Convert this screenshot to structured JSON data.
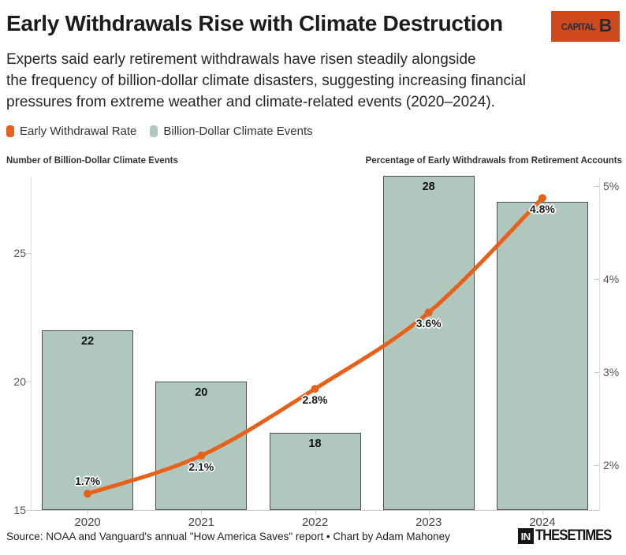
{
  "header": {
    "title": "Early Withdrawals Rise with Climate Destruction",
    "subtitle_lines": [
      "Experts said early retirement withdrawals have risen steadily alongside",
      "the frequency of billion-dollar climate disasters, suggesting increasing financial",
      "pressures from extreme weather and climate-related events (2020–2024)."
    ],
    "capital_b_logo": {
      "word": "CAPITAL",
      "letter": "B",
      "bg_color": "#CE491E",
      "text_color": "#252E38"
    }
  },
  "legend": {
    "items": [
      {
        "label": "Early Withdrawal Rate",
        "color": "#E8611B"
      },
      {
        "label": "Billion-Dollar Climate Events",
        "color": "#AFC7BC"
      }
    ]
  },
  "chart_data": {
    "type": "bar+line dual-axis",
    "categories": [
      "2020",
      "2021",
      "2022",
      "2023",
      "2024"
    ],
    "series": [
      {
        "name": "Billion-Dollar Climate Events",
        "type": "bar",
        "axis": "left",
        "values": [
          22,
          20,
          18,
          28,
          27
        ],
        "bar_labels": [
          "22",
          "20",
          "18",
          "28",
          ""
        ],
        "fill": "#AFC7BC",
        "stroke": "#4E4E4E"
      },
      {
        "name": "Early Withdrawal Rate",
        "type": "line",
        "axis": "right",
        "values_pct": [
          1.7,
          2.1,
          2.8,
          3.6,
          4.8
        ],
        "point_labels": [
          "1.7%",
          "2.1%",
          "2.8%",
          "3.6%",
          "4.8%"
        ],
        "color": "#E8611B"
      }
    ],
    "left_axis": {
      "title": "Number of Billion-Dollar Climate Events",
      "ticks": [
        15,
        20,
        25
      ],
      "range": [
        15,
        28
      ],
      "grid": false
    },
    "right_axis": {
      "title": "Percentage of Early Withdrawals from Retirement Accounts",
      "tick_labels": [
        "2%",
        "3%",
        "4%",
        "5%"
      ],
      "tick_values": [
        2,
        3,
        4,
        5
      ]
    },
    "legend_position": "top-left"
  },
  "footer": {
    "source": "Source: NOAA and Vanguard's annual \"How America Saves\" report • Chart by Adam Mahoney",
    "itt_logo": {
      "in": "IN",
      "rest": "THESETIMES"
    }
  }
}
